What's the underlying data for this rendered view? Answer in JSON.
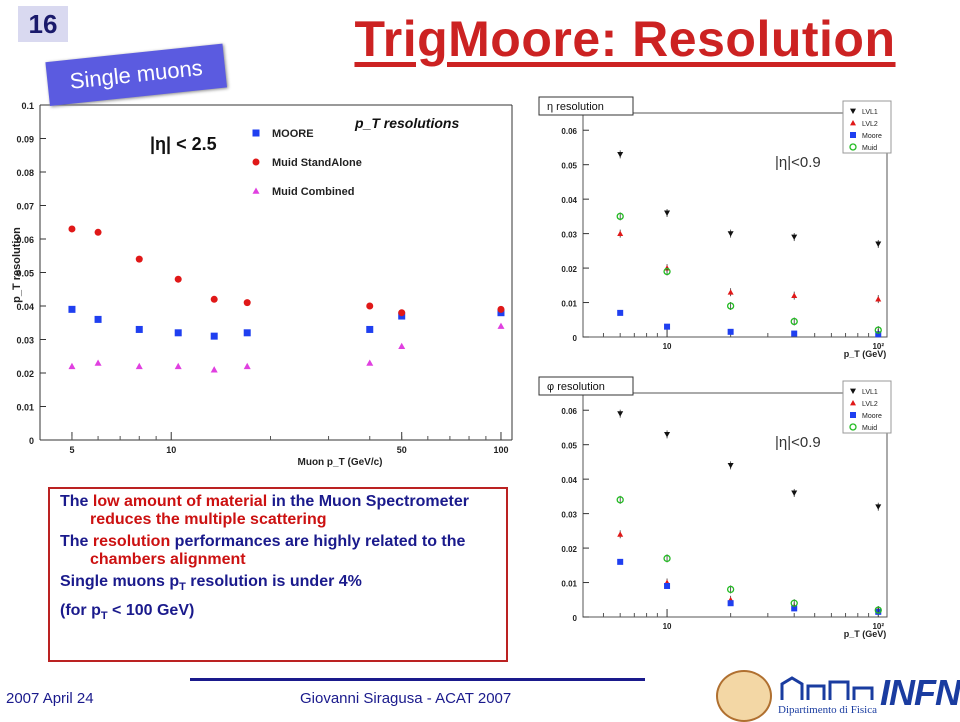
{
  "slide": {
    "number": "16",
    "title": "TrigMoore: Resolution",
    "badge": "Single muons",
    "footer_date": "2007 April 24",
    "footer_author": "Giovanni Siragusa - ACAT 2007",
    "logo_infn": "INFN",
    "logo_dept": "Dipartimento di Fisica"
  },
  "text": {
    "p1_a": "The ",
    "p1_b": "low amount of material",
    "p1_c": " in the Muon Spectrometer ",
    "p1_d": "reduces the multiple scattering",
    "p2_a": "The ",
    "p2_b": "resolution",
    "p2_c": " performances are highly related to the ",
    "p2_d": "chambers alignment",
    "p3_a": "Single muons p",
    "p3_b": "T",
    "p3_c": " resolution is under 4%",
    "p4_a": "(for p",
    "p4_b": "T",
    "p4_c": " < 100 GeV)"
  },
  "colors": {
    "title_red": "#cc2222",
    "navy": "#1a1a8c",
    "series_blue": "#1f3ff0",
    "series_red": "#e01818",
    "series_magenta": "#e040e0",
    "series_green": "#22bb22",
    "series_black": "#111111"
  },
  "chart_data": [
    {
      "id": "main",
      "type": "scatter",
      "title": "p_T resolutions",
      "annotation": "|η| < 2.5",
      "xlabel": "Muon p_T (GeV/c)",
      "ylabel": "p_T resolution",
      "xscale": "log",
      "xlim": [
        4,
        108
      ],
      "ylim": [
        0,
        0.1
      ],
      "xticks": [
        "5",
        "10",
        "50",
        "100"
      ],
      "yticks": [
        "0",
        "0.01",
        "0.02",
        "0.03",
        "0.04",
        "0.05",
        "0.06",
        "0.07",
        "0.08",
        "0.09",
        "0.1"
      ],
      "legend_position": "top-center",
      "series": [
        {
          "name": "MOORE",
          "marker": "square",
          "color": "#1f3ff0",
          "x": [
            5,
            6,
            8,
            10.5,
            13.5,
            17,
            40,
            50,
            100
          ],
          "y": [
            0.039,
            0.036,
            0.033,
            0.032,
            0.031,
            0.032,
            0.033,
            0.037,
            0.038
          ]
        },
        {
          "name": "Muid StandAlone",
          "marker": "circle",
          "color": "#e01818",
          "x": [
            5,
            6,
            8,
            10.5,
            13.5,
            17,
            40,
            50,
            100
          ],
          "y": [
            0.063,
            0.062,
            0.054,
            0.048,
            0.042,
            0.041,
            0.04,
            0.038,
            0.039
          ]
        },
        {
          "name": "Muid Combined",
          "marker": "triangle",
          "color": "#e040e0",
          "x": [
            5,
            6,
            8,
            10.5,
            13.5,
            17,
            40,
            50,
            100
          ],
          "y": [
            0.022,
            0.023,
            0.022,
            0.022,
            0.021,
            0.022,
            0.023,
            0.028,
            0.034
          ]
        }
      ]
    },
    {
      "id": "eta",
      "type": "scatter",
      "title": "η resolution",
      "annotation": "|η|<0.9",
      "xlabel": "p_T (GeV)",
      "xscale": "log",
      "xlim": [
        4,
        110
      ],
      "ylim": [
        0,
        0.065
      ],
      "xticks": [
        "10",
        "10²"
      ],
      "yticks": [
        "0",
        "0.01",
        "0.02",
        "0.03",
        "0.04",
        "0.05",
        "0.06"
      ],
      "legend_position": "top-right",
      "series": [
        {
          "name": "LVL1",
          "marker": "triangle-down",
          "color": "#111111",
          "x": [
            6,
            10,
            20,
            40,
            100
          ],
          "y": [
            0.053,
            0.036,
            0.03,
            0.029,
            0.027
          ]
        },
        {
          "name": "LVL2",
          "marker": "triangle",
          "color": "#e01818",
          "x": [
            6,
            10,
            20,
            40,
            100
          ],
          "y": [
            0.03,
            0.02,
            0.013,
            0.012,
            0.011
          ]
        },
        {
          "name": "Moore",
          "marker": "square",
          "color": "#1f3ff0",
          "x": [
            6,
            10,
            20,
            40,
            100
          ],
          "y": [
            0.007,
            0.003,
            0.0015,
            0.001,
            0.0008
          ]
        },
        {
          "name": "Muid",
          "marker": "circle-open",
          "color": "#22bb22",
          "x": [
            6,
            10,
            20,
            40,
            100
          ],
          "y": [
            0.035,
            0.019,
            0.009,
            0.0045,
            0.002
          ]
        }
      ]
    },
    {
      "id": "phi",
      "type": "scatter",
      "title": "φ resolution",
      "annotation": "|η|<0.9",
      "xlabel": "p_T (GeV)",
      "xscale": "log",
      "xlim": [
        4,
        110
      ],
      "ylim": [
        0,
        0.065
      ],
      "xticks": [
        "10",
        "10²"
      ],
      "yticks": [
        "0",
        "0.01",
        "0.02",
        "0.03",
        "0.04",
        "0.05",
        "0.06"
      ],
      "legend_position": "top-right",
      "series": [
        {
          "name": "LVL1",
          "marker": "triangle-down",
          "color": "#111111",
          "x": [
            6,
            10,
            20,
            40,
            100
          ],
          "y": [
            0.059,
            0.053,
            0.044,
            0.036,
            0.032
          ]
        },
        {
          "name": "LVL2",
          "marker": "triangle",
          "color": "#e01818",
          "x": [
            6,
            10,
            20,
            40,
            100
          ],
          "y": [
            0.024,
            0.01,
            0.005,
            0.003,
            0.002
          ]
        },
        {
          "name": "Moore",
          "marker": "square",
          "color": "#1f3ff0",
          "x": [
            6,
            10,
            20,
            40,
            100
          ],
          "y": [
            0.016,
            0.009,
            0.004,
            0.0025,
            0.0015
          ]
        },
        {
          "name": "Muid",
          "marker": "circle-open",
          "color": "#22bb22",
          "x": [
            6,
            10,
            20,
            40,
            100
          ],
          "y": [
            0.034,
            0.017,
            0.008,
            0.004,
            0.002
          ]
        }
      ]
    }
  ]
}
